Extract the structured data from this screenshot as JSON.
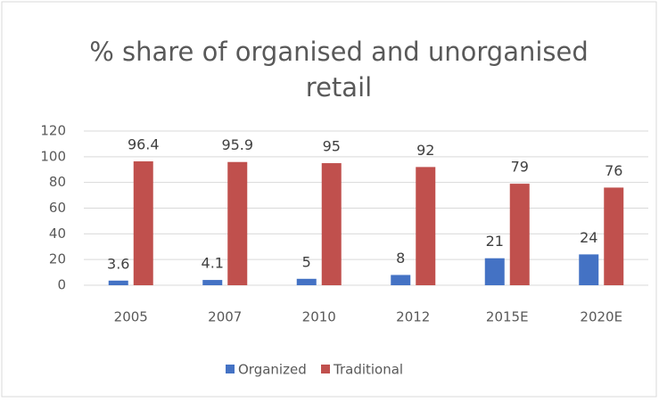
{
  "chart_data": {
    "type": "bar",
    "title": [
      "% share of organised and unorganised",
      "retail"
    ],
    "categories": [
      "2005",
      "2007",
      "2010",
      "2012",
      "2015E",
      "2020E"
    ],
    "series": [
      {
        "name": "Organized",
        "color": "#4472c4",
        "values": [
          3.6,
          4.1,
          5,
          8,
          21,
          24
        ]
      },
      {
        "name": "Traditional",
        "color": "#c0504d",
        "values": [
          96.4,
          95.9,
          95,
          92,
          79,
          76
        ]
      }
    ],
    "ylim": [
      0,
      120
    ],
    "yticks": [
      0,
      20,
      40,
      60,
      80,
      100,
      120
    ],
    "grid": true,
    "legend": "bottom"
  }
}
